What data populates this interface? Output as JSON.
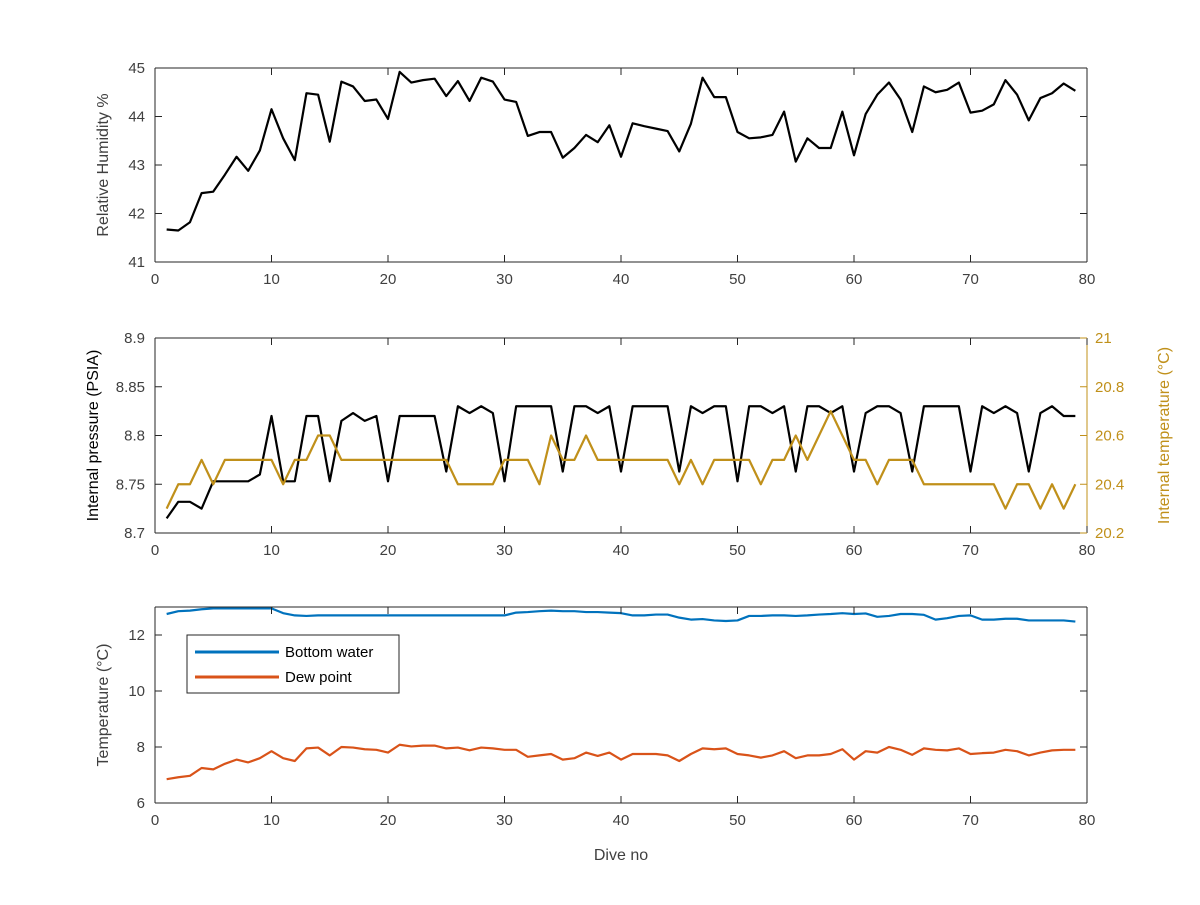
{
  "colors": {
    "black": "#000000",
    "axis": "#262626",
    "tick_text": "#404040",
    "gold": "#C0901A",
    "blue": "#0072BD",
    "orange": "#D95319"
  },
  "chart_data": [
    {
      "type": "line",
      "ylabel": "Relative Humidity %",
      "xlim": [
        0,
        80
      ],
      "ylim": [
        41,
        45
      ],
      "xticks": [
        "0",
        "10",
        "20",
        "30",
        "40",
        "50",
        "60",
        "70",
        "80"
      ],
      "yticks": [
        "41",
        "42",
        "43",
        "44",
        "45"
      ],
      "series": [
        {
          "color": "#000000",
          "x": [
            1,
            2,
            3,
            4,
            5,
            6,
            7,
            8,
            9,
            10,
            11,
            12,
            13,
            14,
            15,
            16,
            17,
            18,
            19,
            20,
            21,
            22,
            23,
            24,
            25,
            26,
            27,
            28,
            29,
            30,
            31,
            32,
            33,
            34,
            35,
            36,
            37,
            38,
            39,
            40,
            41,
            42,
            43,
            44,
            45,
            46,
            47,
            48,
            49,
            50,
            51,
            52,
            53,
            54,
            55,
            56,
            57,
            58,
            59,
            60,
            61,
            62,
            63,
            64,
            65,
            66,
            67,
            68,
            69,
            70,
            71,
            72,
            73,
            74,
            75,
            76,
            77,
            78,
            79
          ],
          "values": [
            41.67,
            41.65,
            41.82,
            42.42,
            42.45,
            42.8,
            43.17,
            42.88,
            43.3,
            44.15,
            43.55,
            43.1,
            44.48,
            44.45,
            43.48,
            44.72,
            44.62,
            44.32,
            44.35,
            43.95,
            44.92,
            44.7,
            44.75,
            44.78,
            44.42,
            44.73,
            44.32,
            44.8,
            44.72,
            44.35,
            44.3,
            43.6,
            43.68,
            43.68,
            43.15,
            43.35,
            43.62,
            43.47,
            43.82,
            43.17,
            43.86,
            43.8,
            43.75,
            43.7,
            43.28,
            43.85,
            44.8,
            44.4,
            44.4,
            43.68,
            43.55,
            43.57,
            43.62,
            44.1,
            43.07,
            43.55,
            43.35,
            43.35,
            44.1,
            43.2,
            44.05,
            44.45,
            44.7,
            44.35,
            43.68,
            44.62,
            44.5,
            44.55,
            44.7,
            44.08,
            44.12,
            44.25,
            44.75,
            44.45,
            43.92,
            44.38,
            44.48,
            44.68,
            44.53
          ]
        }
      ]
    },
    {
      "type": "line",
      "ylabel": "Internal pressure (PSIA)",
      "y2label": "Internal temperature (°C)",
      "xlim": [
        0,
        80
      ],
      "ylim": [
        8.7,
        8.9
      ],
      "y2lim": [
        20.2,
        21
      ],
      "xticks": [
        "0",
        "10",
        "20",
        "30",
        "40",
        "50",
        "60",
        "70",
        "80"
      ],
      "yticks": [
        "8.7",
        "8.75",
        "8.8",
        "8.85",
        "8.9"
      ],
      "y2ticks": [
        "20.2",
        "20.4",
        "20.6",
        "20.8",
        "21"
      ],
      "series": [
        {
          "axis": "left",
          "color": "#000000",
          "x": [
            1,
            2,
            3,
            4,
            5,
            6,
            7,
            8,
            9,
            10,
            11,
            12,
            13,
            14,
            15,
            16,
            17,
            18,
            19,
            20,
            21,
            22,
            23,
            24,
            25,
            26,
            27,
            28,
            29,
            30,
            31,
            32,
            33,
            34,
            35,
            36,
            37,
            38,
            39,
            40,
            41,
            42,
            43,
            44,
            45,
            46,
            47,
            48,
            49,
            50,
            51,
            52,
            53,
            54,
            55,
            56,
            57,
            58,
            59,
            60,
            61,
            62,
            63,
            64,
            65,
            66,
            67,
            68,
            69,
            70,
            71,
            72,
            73,
            74,
            75,
            76,
            77,
            78,
            79
          ],
          "values": [
            8.715,
            8.732,
            8.732,
            8.725,
            8.753,
            8.753,
            8.753,
            8.753,
            8.76,
            8.82,
            8.753,
            8.753,
            8.82,
            8.82,
            8.753,
            8.815,
            8.823,
            8.815,
            8.82,
            8.753,
            8.82,
            8.82,
            8.82,
            8.82,
            8.763,
            8.83,
            8.823,
            8.83,
            8.823,
            8.753,
            8.83,
            8.83,
            8.83,
            8.83,
            8.763,
            8.83,
            8.83,
            8.823,
            8.83,
            8.763,
            8.83,
            8.83,
            8.83,
            8.83,
            8.763,
            8.83,
            8.823,
            8.83,
            8.83,
            8.753,
            8.83,
            8.83,
            8.823,
            8.83,
            8.763,
            8.83,
            8.83,
            8.823,
            8.83,
            8.763,
            8.823,
            8.83,
            8.83,
            8.823,
            8.763,
            8.83,
            8.83,
            8.83,
            8.83,
            8.763,
            8.83,
            8.823,
            8.83,
            8.823,
            8.763,
            8.823,
            8.83,
            8.82,
            8.82
          ]
        },
        {
          "axis": "right",
          "color": "#C0901A",
          "x": [
            1,
            2,
            3,
            4,
            5,
            6,
            7,
            8,
            9,
            10,
            11,
            12,
            13,
            14,
            15,
            16,
            17,
            18,
            19,
            20,
            21,
            22,
            23,
            24,
            25,
            26,
            27,
            28,
            29,
            30,
            31,
            32,
            33,
            34,
            35,
            36,
            37,
            38,
            39,
            40,
            41,
            42,
            43,
            44,
            45,
            46,
            47,
            48,
            49,
            50,
            51,
            52,
            53,
            54,
            55,
            56,
            57,
            58,
            59,
            60,
            61,
            62,
            63,
            64,
            65,
            66,
            67,
            68,
            69,
            70,
            71,
            72,
            73,
            74,
            75,
            76,
            77,
            78,
            79
          ],
          "values": [
            20.3,
            20.4,
            20.4,
            20.5,
            20.4,
            20.5,
            20.5,
            20.5,
            20.5,
            20.5,
            20.4,
            20.5,
            20.5,
            20.6,
            20.6,
            20.5,
            20.5,
            20.5,
            20.5,
            20.5,
            20.5,
            20.5,
            20.5,
            20.5,
            20.5,
            20.4,
            20.4,
            20.4,
            20.4,
            20.5,
            20.5,
            20.5,
            20.4,
            20.6,
            20.5,
            20.5,
            20.6,
            20.5,
            20.5,
            20.5,
            20.5,
            20.5,
            20.5,
            20.5,
            20.4,
            20.5,
            20.4,
            20.5,
            20.5,
            20.5,
            20.5,
            20.4,
            20.5,
            20.5,
            20.6,
            20.5,
            20.6,
            20.7,
            20.6,
            20.5,
            20.5,
            20.4,
            20.5,
            20.5,
            20.5,
            20.4,
            20.4,
            20.4,
            20.4,
            20.4,
            20.4,
            20.4,
            20.3,
            20.4,
            20.4,
            20.3,
            20.4,
            20.3,
            20.4
          ]
        }
      ]
    },
    {
      "type": "line",
      "xlabel": "Dive no",
      "ylabel": "Temperature (°C)",
      "xlim": [
        0,
        80
      ],
      "ylim": [
        6,
        13
      ],
      "xticks": [
        "0",
        "10",
        "20",
        "30",
        "40",
        "50",
        "60",
        "70",
        "80"
      ],
      "yticks": [
        "6",
        "8",
        "10",
        "12"
      ],
      "legend": {
        "placement": "upper-left"
      },
      "series": [
        {
          "name": "Bottom water",
          "color": "#0072BD",
          "x": [
            1,
            2,
            3,
            4,
            5,
            6,
            7,
            8,
            9,
            10,
            11,
            12,
            13,
            14,
            15,
            16,
            17,
            18,
            19,
            20,
            21,
            22,
            23,
            24,
            25,
            26,
            27,
            28,
            29,
            30,
            31,
            32,
            33,
            34,
            35,
            36,
            37,
            38,
            39,
            40,
            41,
            42,
            43,
            44,
            45,
            46,
            47,
            48,
            49,
            50,
            51,
            52,
            53,
            54,
            55,
            56,
            57,
            58,
            59,
            60,
            61,
            62,
            63,
            64,
            65,
            66,
            67,
            68,
            69,
            70,
            71,
            72,
            73,
            74,
            75,
            76,
            77,
            78,
            79
          ],
          "values": [
            12.75,
            12.85,
            12.87,
            12.92,
            12.95,
            12.95,
            12.95,
            12.95,
            12.95,
            12.95,
            12.78,
            12.7,
            12.68,
            12.7,
            12.7,
            12.7,
            12.7,
            12.7,
            12.7,
            12.7,
            12.7,
            12.7,
            12.7,
            12.7,
            12.7,
            12.7,
            12.7,
            12.7,
            12.7,
            12.7,
            12.8,
            12.82,
            12.85,
            12.87,
            12.85,
            12.85,
            12.82,
            12.82,
            12.8,
            12.78,
            12.7,
            12.7,
            12.73,
            12.73,
            12.62,
            12.55,
            12.57,
            12.52,
            12.5,
            12.52,
            12.68,
            12.68,
            12.7,
            12.7,
            12.68,
            12.7,
            12.73,
            12.75,
            12.78,
            12.75,
            12.77,
            12.65,
            12.68,
            12.75,
            12.75,
            12.72,
            12.55,
            12.6,
            12.68,
            12.7,
            12.55,
            12.55,
            12.58,
            12.58,
            12.52,
            12.52,
            12.52,
            12.52,
            12.48
          ]
        },
        {
          "name": "Dew point",
          "color": "#D95319",
          "x": [
            1,
            2,
            3,
            4,
            5,
            6,
            7,
            8,
            9,
            10,
            11,
            12,
            13,
            14,
            15,
            16,
            17,
            18,
            19,
            20,
            21,
            22,
            23,
            24,
            25,
            26,
            27,
            28,
            29,
            30,
            31,
            32,
            33,
            34,
            35,
            36,
            37,
            38,
            39,
            40,
            41,
            42,
            43,
            44,
            45,
            46,
            47,
            48,
            49,
            50,
            51,
            52,
            53,
            54,
            55,
            56,
            57,
            58,
            59,
            60,
            61,
            62,
            63,
            64,
            65,
            66,
            67,
            68,
            69,
            70,
            71,
            72,
            73,
            74,
            75,
            76,
            77,
            78,
            79
          ],
          "values": [
            6.85,
            6.92,
            6.97,
            7.25,
            7.2,
            7.4,
            7.55,
            7.45,
            7.6,
            7.85,
            7.6,
            7.5,
            7.95,
            7.98,
            7.7,
            8.0,
            7.98,
            7.92,
            7.9,
            7.8,
            8.08,
            8.02,
            8.05,
            8.05,
            7.95,
            7.98,
            7.88,
            7.98,
            7.95,
            7.9,
            7.9,
            7.65,
            7.7,
            7.75,
            7.55,
            7.6,
            7.8,
            7.68,
            7.8,
            7.55,
            7.75,
            7.75,
            7.75,
            7.7,
            7.5,
            7.75,
            7.95,
            7.92,
            7.95,
            7.75,
            7.7,
            7.62,
            7.7,
            7.85,
            7.6,
            7.7,
            7.7,
            7.75,
            7.92,
            7.55,
            7.85,
            7.8,
            8.0,
            7.9,
            7.72,
            7.95,
            7.9,
            7.88,
            7.95,
            7.75,
            7.78,
            7.8,
            7.9,
            7.85,
            7.7,
            7.8,
            7.88,
            7.9,
            7.9
          ]
        }
      ]
    }
  ]
}
